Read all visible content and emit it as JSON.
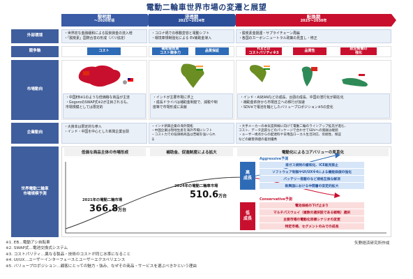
{
  "title": "電動二輪車世界市場の変遷と展望",
  "phases": [
    {
      "label": "黎明期",
      "period": "〜2020年頃"
    },
    {
      "label": "浸透期",
      "period": "2021〜2024年"
    },
    {
      "label": "転換期",
      "period": "2025〜2030年"
    }
  ],
  "rows": {
    "env": "外部環境",
    "compete": "競争軸",
    "market": "市場動向",
    "corp": "企業動向",
    "forecast": "世界電動二輪車\n市場規模予測"
  },
  "env": {
    "early": [
      "・世界初な金融緩和による投資資金の流入増",
      "・「脱炭素」国際合意の形成（パリ協定）"
    ],
    "growth": [
      "・コロナ禍での移動変容と電動シフト",
      "・環境車規制強化による EV補助金導入"
    ],
    "turn": [
      "・脱炭素金援護・サプライチェーン再編",
      "・各国のカーボンニュートラル政策の見直し・修正"
    ]
  },
  "compete": {
    "early": "コスト",
    "growth1": "補助金政策\nコスト競争力",
    "growth2": "品質保証",
    "turn1": "ICEとの\nコストパリティ※3",
    "turn2": "品質性",
    "turn3": "航空整備の\n強化"
  },
  "market": {
    "early": [
      "・中国EB※1のような低価格な商品が主流",
      "・GogoroのSWAP式※2が注目されるも、",
      "  市場規模としては限定的"
    ],
    "growth": [
      "・インドが主要市場に浮上",
      "・成長ドライバは補助金制度で、減税や制",
      "  度等で市場形成に貢献"
    ],
    "turn": [
      "・インド・ASEANなどの成長、台頭の成長、中国の潜行化が顕在化",
      "・補助金依存から市場自立への移行が加速",
      "・SDV※で電池を軸としたバリュープロポジション※5の変化"
    ]
  },
  "corp": {
    "early": [
      "・大資本は限定的な参入",
      "・インド・中国を中心とした新興企業台頭"
    ],
    "growth": [
      "・インド新興企業の海外開拓",
      "・中国企業は現地生産を海外市場にシフト",
      "・コスト力での低価格商品は苦戦を強いられ",
      "  る"
    ],
    "turn": [
      "・大手メーカーの本気度目線に向けて電動二輪のラインアップ拡充が進む、",
      "  コスト、データ品質などのパッケージで合わせてSDVへの発展は継続",
      "・ユーザー視点からの配達料や日用品ローカル生活対応、伝統性、保証",
      "  などの顧客価値の差別優秀"
    ]
  },
  "bands": {
    "early": "低価な商品主体の市場形成",
    "growth": "補助金、促進制度による拡大",
    "turn": "電動化によるコアバリューの見直化"
  },
  "market_size": {
    "y2021_label": "2021年の電動二輪市場",
    "y2021_value": "366.8",
    "y2024_label": "2024年の電動二輪車市場",
    "y2024_value": "510.6",
    "unit": "万台"
  },
  "aggressive": {
    "title": "Aggressive予測",
    "side": "高\n成長",
    "items": [
      "排ガス規制の緩和化、ICE販売禁止",
      "ソフトウェア制御やUI/UX※4による機能価値の強化",
      "バッテリー搭載のなど規格互換な解消",
      "新興国における中間層の安定的拡大"
    ]
  },
  "conservative": {
    "title": "Conservative予測",
    "side": "低\n成長",
    "items": [
      "電池価格の下げ止まり",
      "マルチパスウェイ（複数の選択肢である戦略）選択",
      "主要市場の電動化目標シナリオの変更",
      "特定市場、セグメントのみでの成長"
    ]
  },
  "notes": [
    "※1. EB…電動アシ自転車",
    "※2. SWAP式…電池交換式システム",
    "※3. コストパリティ…異なる製品・技術のコストが同じ水準になること",
    "※4. UI/UX…ユーザーインターフェースとユーザーエクスペリエンス",
    "※5. バリュープロポジション…顧客にとっての魅力・強み、なぜその商品・サービスを選ぶべきかという理由"
  ],
  "credit": "矢野経済研究所作成",
  "colors": {
    "navy": "#3f5e9e",
    "red": "#c8102e",
    "blue": "#2e6bb7"
  }
}
